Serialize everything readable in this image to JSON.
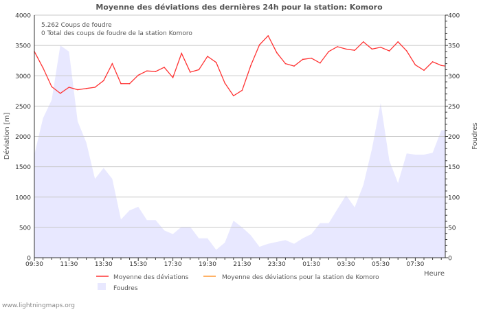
{
  "chart_data": {
    "type": "line",
    "title": "Moyenne des déviations des dernières 24h pour la station: Komoro",
    "xlabel": "Heure",
    "ylabel": "Déviation  [m]",
    "y2label": "Foudres",
    "ylim": [
      0,
      4000
    ],
    "y2lim": [
      0,
      400
    ],
    "yticks": [
      "0",
      "500",
      "1000",
      "1500",
      "2000",
      "2500",
      "3000",
      "3500",
      "4000"
    ],
    "y2ticks": [
      "0",
      "50",
      "100",
      "150",
      "200",
      "250",
      "300",
      "350",
      "400"
    ],
    "xticks": [
      "09:30",
      "11:30",
      "13:30",
      "15:30",
      "17:30",
      "19:30",
      "21:30",
      "23:30",
      "01:30",
      "03:30",
      "05:30",
      "07:30"
    ],
    "grid": true,
    "info_lines": [
      "5.262  Coups de foudre",
      "0 Total des coups de foudre de la station Komoro"
    ],
    "legend": [
      {
        "name": "Moyenne des déviations",
        "color": "#ff3333",
        "kind": "line"
      },
      {
        "name": "Moyenne des déviations pour la station de Komoro",
        "color": "#ff9933",
        "kind": "line"
      },
      {
        "name": "Foudres",
        "color": "#e8e8ff",
        "kind": "area"
      }
    ],
    "legend_position": "bottom",
    "interval_minutes": 30,
    "series": [
      {
        "name": "Moyenne des déviations",
        "axis": "left",
        "values": [
          3400,
          3130,
          2820,
          2710,
          2810,
          2770,
          2790,
          2810,
          2920,
          3200,
          2870,
          2870,
          3010,
          3080,
          3070,
          3140,
          2970,
          3370,
          3060,
          3100,
          3320,
          3220,
          2880,
          2670,
          2760,
          3170,
          3510,
          3660,
          3380,
          3200,
          3160,
          3270,
          3290,
          3210,
          3400,
          3480,
          3440,
          3420,
          3560,
          3440,
          3470,
          3410,
          3560,
          3410,
          3180,
          3090,
          3230,
          3170
        ]
      },
      {
        "name": "Foudres",
        "axis": "right",
        "values": [
          170,
          230,
          260,
          350,
          340,
          225,
          190,
          130,
          148,
          130,
          63,
          78,
          84,
          62,
          62,
          45,
          39,
          51,
          51,
          32,
          32,
          13,
          25,
          61,
          50,
          37,
          18,
          23,
          26,
          29,
          23,
          32,
          39,
          57,
          57,
          80,
          103,
          83,
          120,
          180,
          255,
          160,
          123,
          172,
          170,
          170,
          173,
          210
        ]
      }
    ]
  },
  "footer": {
    "credit": "www.lightningmaps.org"
  }
}
